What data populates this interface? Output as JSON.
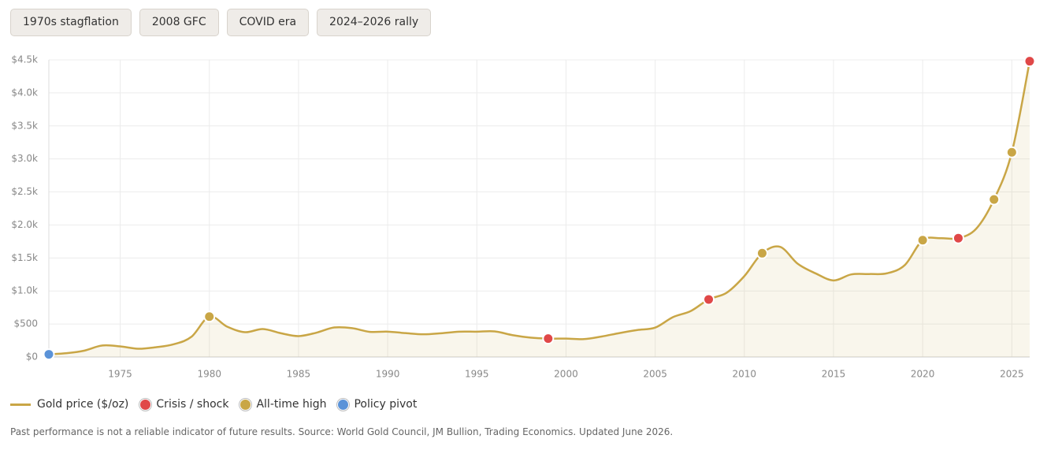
{
  "chips": [
    "1970s stagflation",
    "2008 GFC",
    "COVID era",
    "2024–2026 rally"
  ],
  "chart_data": {
    "type": "line",
    "x": [
      1971,
      1972,
      1973,
      1974,
      1975,
      1976,
      1977,
      1978,
      1979,
      1980,
      1981,
      1982,
      1983,
      1984,
      1985,
      1986,
      1987,
      1988,
      1989,
      1990,
      1991,
      1992,
      1993,
      1994,
      1995,
      1996,
      1997,
      1998,
      1999,
      2000,
      2001,
      2002,
      2003,
      2004,
      2005,
      2006,
      2007,
      2008,
      2009,
      2010,
      2011,
      2012,
      2013,
      2014,
      2015,
      2016,
      2017,
      2018,
      2019,
      2020,
      2021,
      2022,
      2023,
      2024,
      2025,
      2026
    ],
    "series": [
      {
        "name": "Gold price ($/oz)",
        "color": "#c9a646",
        "values": [
          41,
          58,
          97,
          175,
          161,
          125,
          148,
          193,
          307,
          612,
          460,
          376,
          424,
          361,
          317,
          368,
          447,
          437,
          381,
          384,
          362,
          344,
          360,
          384,
          384,
          388,
          331,
          294,
          279,
          279,
          271,
          310,
          363,
          409,
          445,
          604,
          697,
          872,
          972,
          1225,
          1572,
          1669,
          1411,
          1266,
          1160,
          1251,
          1257,
          1268,
          1393,
          1770,
          1799,
          1800,
          1943,
          2386,
          3100,
          4480
        ]
      }
    ],
    "marker_groups": [
      {
        "name": "Crisis / shock",
        "color": "#e04848",
        "x": [
          1999,
          2008,
          2022,
          2026
        ]
      },
      {
        "name": "All-time high",
        "color": "#c9a646",
        "x": [
          1980,
          2011,
          2020,
          2024,
          2025
        ]
      },
      {
        "name": "Policy pivot",
        "color": "#5b93d8",
        "x": [
          1971
        ]
      }
    ],
    "xlim": [
      1971,
      2026
    ],
    "xticks": [
      1975,
      1980,
      1985,
      1990,
      1995,
      2000,
      2005,
      2010,
      2015,
      2020,
      2025
    ],
    "ylim": [
      0,
      4500
    ],
    "yticks": [
      {
        "value": 0,
        "label": "$0"
      },
      {
        "value": 500,
        "label": "$500"
      },
      {
        "value": 1000,
        "label": "$1.0k"
      },
      {
        "value": 1500,
        "label": "$1.5k"
      },
      {
        "value": 2000,
        "label": "$2.0k"
      },
      {
        "value": 2500,
        "label": "$2.5k"
      },
      {
        "value": 3000,
        "label": "$3.0k"
      },
      {
        "value": 3500,
        "label": "$3.5k"
      },
      {
        "value": 4000,
        "label": "$4.0k"
      },
      {
        "value": 4500,
        "label": "$4.5k"
      }
    ],
    "grid": true
  },
  "footnote": "Past performance is not a reliable indicator of future results. Source: World Gold Council, JM Bullion, Trading Economics. Updated June 2026."
}
